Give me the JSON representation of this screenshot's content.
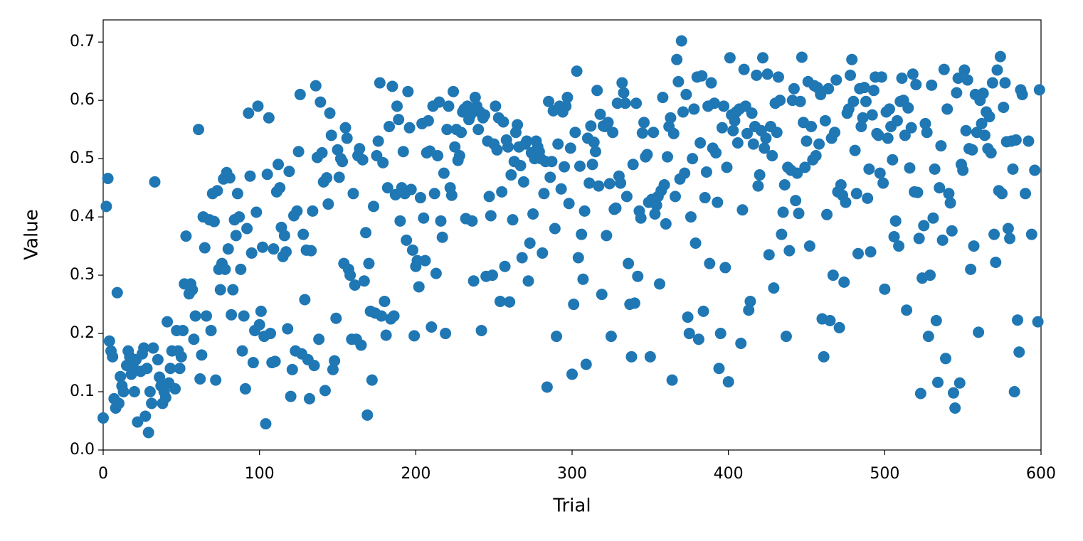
{
  "chart_data": {
    "type": "scatter",
    "x_label": "Trial",
    "y_label": "Value",
    "color": "#1f77b4",
    "xlim": [
      0,
      600
    ],
    "ylim": [
      0,
      0.738
    ],
    "xticks": [
      0,
      100,
      200,
      300,
      400,
      500,
      600
    ],
    "yticks": [
      {
        "value": 0,
        "label": "0.0"
      },
      0.1,
      0.2,
      0.3,
      0.4,
      0.5,
      0.6,
      0.7
    ],
    "x": [
      0,
      2,
      3,
      4,
      5,
      6,
      7,
      8,
      9,
      10,
      11,
      12,
      13,
      15,
      16,
      17,
      18,
      19,
      20,
      21,
      22,
      24,
      25,
      26,
      27,
      28,
      29,
      30,
      31,
      32,
      33,
      35,
      36,
      37,
      38,
      39,
      40,
      41,
      42,
      43,
      44,
      46,
      47,
      48,
      49,
      50,
      51,
      52,
      53,
      55,
      56,
      57,
      58,
      59,
      61,
      62,
      63,
      64,
      65,
      66,
      68,
      69,
      70,
      71,
      72,
      73,
      74,
      75,
      76,
      77,
      78,
      79,
      80,
      81,
      82,
      83,
      84,
      85,
      86,
      87,
      88,
      89,
      90,
      91,
      92,
      93,
      94,
      95,
      96,
      97,
      98,
      99,
      100,
      101,
      102,
      103,
      104,
      105,
      106,
      107,
      108,
      109,
      110,
      111,
      112,
      113,
      114,
      115,
      116,
      117,
      118,
      119,
      120,
      121,
      122,
      123,
      124,
      125,
      126,
      127,
      128,
      129,
      130,
      131,
      132,
      133,
      134,
      135,
      136,
      137,
      138,
      139,
      140,
      141,
      142,
      143,
      144,
      145,
      146,
      147,
      148,
      149,
      150,
      151,
      152,
      153,
      154,
      155,
      156,
      157,
      158,
      159,
      160,
      161,
      162,
      163,
      164,
      165,
      166,
      167,
      168,
      169,
      170,
      171,
      172,
      173,
      174,
      175,
      176,
      177,
      178,
      179,
      180,
      181,
      182,
      183,
      184,
      185,
      186,
      187,
      188,
      189,
      190,
      191,
      192,
      193,
      194,
      195,
      196,
      197,
      198,
      199,
      200,
      201,
      202,
      203,
      204,
      205,
      206,
      207,
      208,
      209,
      210,
      211,
      212,
      213,
      214,
      215,
      216,
      217,
      218,
      219,
      220,
      221,
      222,
      223,
      224,
      225,
      226,
      227,
      228,
      229,
      230,
      231,
      232,
      233,
      234,
      235,
      236,
      237,
      238,
      239,
      240,
      241,
      242,
      243,
      244,
      245,
      246,
      247,
      248,
      249,
      250,
      251,
      252,
      253,
      254,
      255,
      256,
      257,
      258,
      259,
      260,
      261,
      262,
      263,
      264,
      265,
      266,
      267,
      268,
      269,
      270,
      271,
      272,
      273,
      274,
      275,
      276,
      277,
      278,
      279,
      280,
      281,
      282,
      283,
      284,
      285,
      286,
      287,
      288,
      289,
      290,
      291,
      292,
      293,
      294,
      295,
      296,
      297,
      298,
      299,
      300,
      301,
      302,
      303,
      304,
      305,
      306,
      307,
      308,
      309,
      310,
      311,
      312,
      313,
      314,
      315,
      316,
      317,
      318,
      319,
      320,
      321,
      322,
      323,
      324,
      325,
      326,
      327,
      328,
      329,
      330,
      331,
      332,
      333,
      334,
      335,
      336,
      337,
      338,
      339,
      340,
      341,
      342,
      343,
      344,
      345,
      346,
      347,
      348,
      349,
      350,
      351,
      352,
      353,
      354,
      355,
      356,
      357,
      358,
      359,
      360,
      361,
      362,
      363,
      364,
      365,
      366,
      367,
      368,
      369,
      370,
      371,
      372,
      373,
      374,
      375,
      376,
      377,
      378,
      379,
      380,
      381,
      382,
      383,
      384,
      385,
      386,
      387,
      388,
      389,
      390,
      391,
      392,
      393,
      394,
      395,
      396,
      397,
      398,
      399,
      400,
      401,
      402,
      403,
      404,
      405,
      406,
      407,
      408,
      409,
      410,
      411,
      412,
      413,
      414,
      415,
      416,
      417,
      418,
      419,
      420,
      421,
      422,
      423,
      424,
      425,
      426,
      427,
      428,
      429,
      430,
      431,
      432,
      433,
      434,
      435,
      436,
      437,
      438,
      439,
      440,
      441,
      442,
      443,
      444,
      445,
      446,
      447,
      448,
      449,
      450,
      451,
      452,
      453,
      454,
      455,
      456,
      457,
      458,
      459,
      460,
      461,
      462,
      463,
      464,
      465,
      466,
      467,
      468,
      469,
      470,
      471,
      472,
      473,
      474,
      475,
      476,
      477,
      478,
      479,
      480,
      481,
      482,
      483,
      484,
      485,
      486,
      487,
      488,
      489,
      490,
      491,
      492,
      493,
      494,
      495,
      496,
      497,
      498,
      499,
      500,
      501,
      502,
      503,
      504,
      505,
      506,
      507,
      508,
      509,
      510,
      511,
      512,
      513,
      514,
      515,
      516,
      517,
      518,
      519,
      520,
      521,
      522,
      523,
      524,
      525,
      526,
      527,
      528,
      529,
      530,
      531,
      532,
      533,
      534,
      535,
      536,
      537,
      538,
      539,
      540,
      541,
      542,
      543,
      544,
      545,
      546,
      547,
      548,
      549,
      550,
      551,
      552,
      553,
      554,
      555,
      556,
      557,
      558,
      559,
      560,
      561,
      562,
      563,
      564,
      565,
      566,
      567,
      568,
      569,
      570,
      571,
      572,
      573,
      574,
      575,
      576,
      577,
      578,
      579,
      580,
      581,
      582,
      583,
      584,
      585,
      586,
      587,
      588,
      590,
      592,
      594,
      596,
      598,
      599
    ],
    "y": [
      0.055,
      0.418,
      0.466,
      0.187,
      0.17,
      0.16,
      0.088,
      0.072,
      0.27,
      0.08,
      0.126,
      0.11,
      0.1,
      0.145,
      0.17,
      0.16,
      0.13,
      0.145,
      0.1,
      0.155,
      0.048,
      0.135,
      0.165,
      0.175,
      0.058,
      0.14,
      0.03,
      0.1,
      0.08,
      0.175,
      0.46,
      0.155,
      0.125,
      0.11,
      0.08,
      0.1,
      0.09,
      0.22,
      0.115,
      0.14,
      0.17,
      0.105,
      0.205,
      0.17,
      0.14,
      0.16,
      0.205,
      0.285,
      0.367,
      0.268,
      0.285,
      0.275,
      0.19,
      0.23,
      0.55,
      0.122,
      0.163,
      0.4,
      0.347,
      0.23,
      0.395,
      0.205,
      0.44,
      0.392,
      0.12,
      0.445,
      0.31,
      0.275,
      0.32,
      0.465,
      0.31,
      0.476,
      0.345,
      0.467,
      0.232,
      0.275,
      0.395,
      0.368,
      0.44,
      0.4,
      0.31,
      0.17,
      0.23,
      0.105,
      0.38,
      0.578,
      0.47,
      0.338,
      0.15,
      0.205,
      0.408,
      0.59,
      0.215,
      0.238,
      0.348,
      0.195,
      0.045,
      0.473,
      0.57,
      0.2,
      0.15,
      0.345,
      0.152,
      0.443,
      0.49,
      0.45,
      0.382,
      0.332,
      0.368,
      0.34,
      0.208,
      0.478,
      0.092,
      0.138,
      0.402,
      0.17,
      0.41,
      0.512,
      0.61,
      0.165,
      0.37,
      0.258,
      0.343,
      0.155,
      0.088,
      0.342,
      0.41,
      0.145,
      0.625,
      0.502,
      0.19,
      0.597,
      0.51,
      0.46,
      0.102,
      0.467,
      0.422,
      0.578,
      0.54,
      0.138,
      0.153,
      0.226,
      0.515,
      0.468,
      0.5,
      0.495,
      0.32,
      0.553,
      0.535,
      0.31,
      0.3,
      0.19,
      0.44,
      0.283,
      0.19,
      0.505,
      0.517,
      0.18,
      0.498,
      0.29,
      0.373,
      0.06,
      0.32,
      0.238,
      0.12,
      0.418,
      0.235,
      0.505,
      0.53,
      0.63,
      0.23,
      0.493,
      0.255,
      0.197,
      0.45,
      0.555,
      0.225,
      0.624,
      0.23,
      0.438,
      0.59,
      0.567,
      0.393,
      0.45,
      0.512,
      0.44,
      0.36,
      0.615,
      0.553,
      0.447,
      0.343,
      0.196,
      0.315,
      0.325,
      0.28,
      0.433,
      0.56,
      0.398,
      0.325,
      0.51,
      0.565,
      0.513,
      0.211,
      0.59,
      0.44,
      0.303,
      0.505,
      0.597,
      0.393,
      0.365,
      0.475,
      0.2,
      0.55,
      0.59,
      0.45,
      0.437,
      0.615,
      0.52,
      0.55,
      0.497,
      0.505,
      0.545,
      0.58,
      0.585,
      0.397,
      0.59,
      0.567,
      0.575,
      0.393,
      0.29,
      0.605,
      0.59,
      0.55,
      0.58,
      0.205,
      0.57,
      0.575,
      0.298,
      0.53,
      0.435,
      0.402,
      0.3,
      0.525,
      0.59,
      0.515,
      0.57,
      0.255,
      0.443,
      0.563,
      0.315,
      0.532,
      0.52,
      0.254,
      0.472,
      0.395,
      0.495,
      0.545,
      0.558,
      0.52,
      0.488,
      0.33,
      0.46,
      0.525,
      0.53,
      0.29,
      0.355,
      0.51,
      0.405,
      0.5,
      0.53,
      0.52,
      0.512,
      0.5,
      0.338,
      0.44,
      0.495,
      0.108,
      0.598,
      0.468,
      0.495,
      0.582,
      0.38,
      0.195,
      0.525,
      0.59,
      0.448,
      0.58,
      0.486,
      0.59,
      0.605,
      0.423,
      0.518,
      0.13,
      0.25,
      0.545,
      0.65,
      0.33,
      0.487,
      0.37,
      0.293,
      0.41,
      0.147,
      0.535,
      0.458,
      0.556,
      0.49,
      0.528,
      0.512,
      0.617,
      0.453,
      0.576,
      0.267,
      0.556,
      0.555,
      0.368,
      0.562,
      0.457,
      0.195,
      0.545,
      0.413,
      0.415,
      0.595,
      0.47,
      0.458,
      0.63,
      0.613,
      0.595,
      0.435,
      0.32,
      0.25,
      0.16,
      0.49,
      0.252,
      0.595,
      0.298,
      0.41,
      0.398,
      0.544,
      0.562,
      0.503,
      0.507,
      0.425,
      0.16,
      0.43,
      0.545,
      0.405,
      0.42,
      0.435,
      0.285,
      0.445,
      0.605,
      0.455,
      0.388,
      0.503,
      0.555,
      0.57,
      0.12,
      0.543,
      0.435,
      0.67,
      0.632,
      0.465,
      0.702,
      0.58,
      0.475,
      0.61,
      0.228,
      0.2,
      0.4,
      0.5,
      0.585,
      0.355,
      0.64,
      0.19,
      0.527,
      0.642,
      0.238,
      0.433,
      0.477,
      0.59,
      0.32,
      0.63,
      0.518,
      0.595,
      0.51,
      0.425,
      0.14,
      0.2,
      0.553,
      0.59,
      0.313,
      0.485,
      0.117,
      0.673,
      0.575,
      0.548,
      0.565,
      0.58,
      0.527,
      0.585,
      0.183,
      0.412,
      0.653,
      0.59,
      0.543,
      0.24,
      0.255,
      0.578,
      0.525,
      0.555,
      0.643,
      0.453,
      0.472,
      0.548,
      0.673,
      0.518,
      0.535,
      0.645,
      0.335,
      0.555,
      0.505,
      0.278,
      0.595,
      0.545,
      0.64,
      0.6,
      0.37,
      0.408,
      0.455,
      0.195,
      0.485,
      0.342,
      0.48,
      0.6,
      0.62,
      0.428,
      0.475,
      0.406,
      0.598,
      0.674,
      0.562,
      0.485,
      0.53,
      0.632,
      0.35,
      0.555,
      0.498,
      0.625,
      0.505,
      0.622,
      0.525,
      0.61,
      0.225,
      0.16,
      0.565,
      0.404,
      0.62,
      0.222,
      0.535,
      0.3,
      0.545,
      0.635,
      0.443,
      0.21,
      0.455,
      0.437,
      0.288,
      0.425,
      0.578,
      0.585,
      0.643,
      0.67,
      0.598,
      0.514,
      0.44,
      0.337,
      0.62,
      0.555,
      0.57,
      0.622,
      0.598,
      0.432,
      0.482,
      0.34,
      0.575,
      0.617,
      0.64,
      0.543,
      0.54,
      0.475,
      0.64,
      0.458,
      0.276,
      0.58,
      0.535,
      0.585,
      0.555,
      0.498,
      0.366,
      0.393,
      0.565,
      0.35,
      0.598,
      0.638,
      0.6,
      0.54,
      0.24,
      0.587,
      0.484,
      0.553,
      0.645,
      0.443,
      0.627,
      0.442,
      0.363,
      0.097,
      0.295,
      0.385,
      0.56,
      0.545,
      0.195,
      0.3,
      0.626,
      0.398,
      0.482,
      0.222,
      0.116,
      0.45,
      0.522,
      0.36,
      0.653,
      0.157,
      0.585,
      0.44,
      0.424,
      0.376,
      0.098,
      0.072,
      0.613,
      0.638,
      0.115,
      0.49,
      0.48,
      0.652,
      0.548,
      0.635,
      0.517,
      0.31,
      0.515,
      0.35,
      0.61,
      0.545,
      0.202,
      0.6,
      0.56,
      0.612,
      0.54,
      0.58,
      0.517,
      0.572,
      0.51,
      0.63,
      0.37,
      0.322,
      0.652,
      0.445,
      0.675,
      0.44,
      0.588,
      0.63,
      0.529,
      0.38,
      0.363,
      0.53,
      0.482,
      0.1,
      0.532,
      0.223,
      0.168,
      0.618,
      0.61,
      0.44,
      0.53,
      0.37,
      0.48,
      0.22,
      0.618
    ]
  }
}
